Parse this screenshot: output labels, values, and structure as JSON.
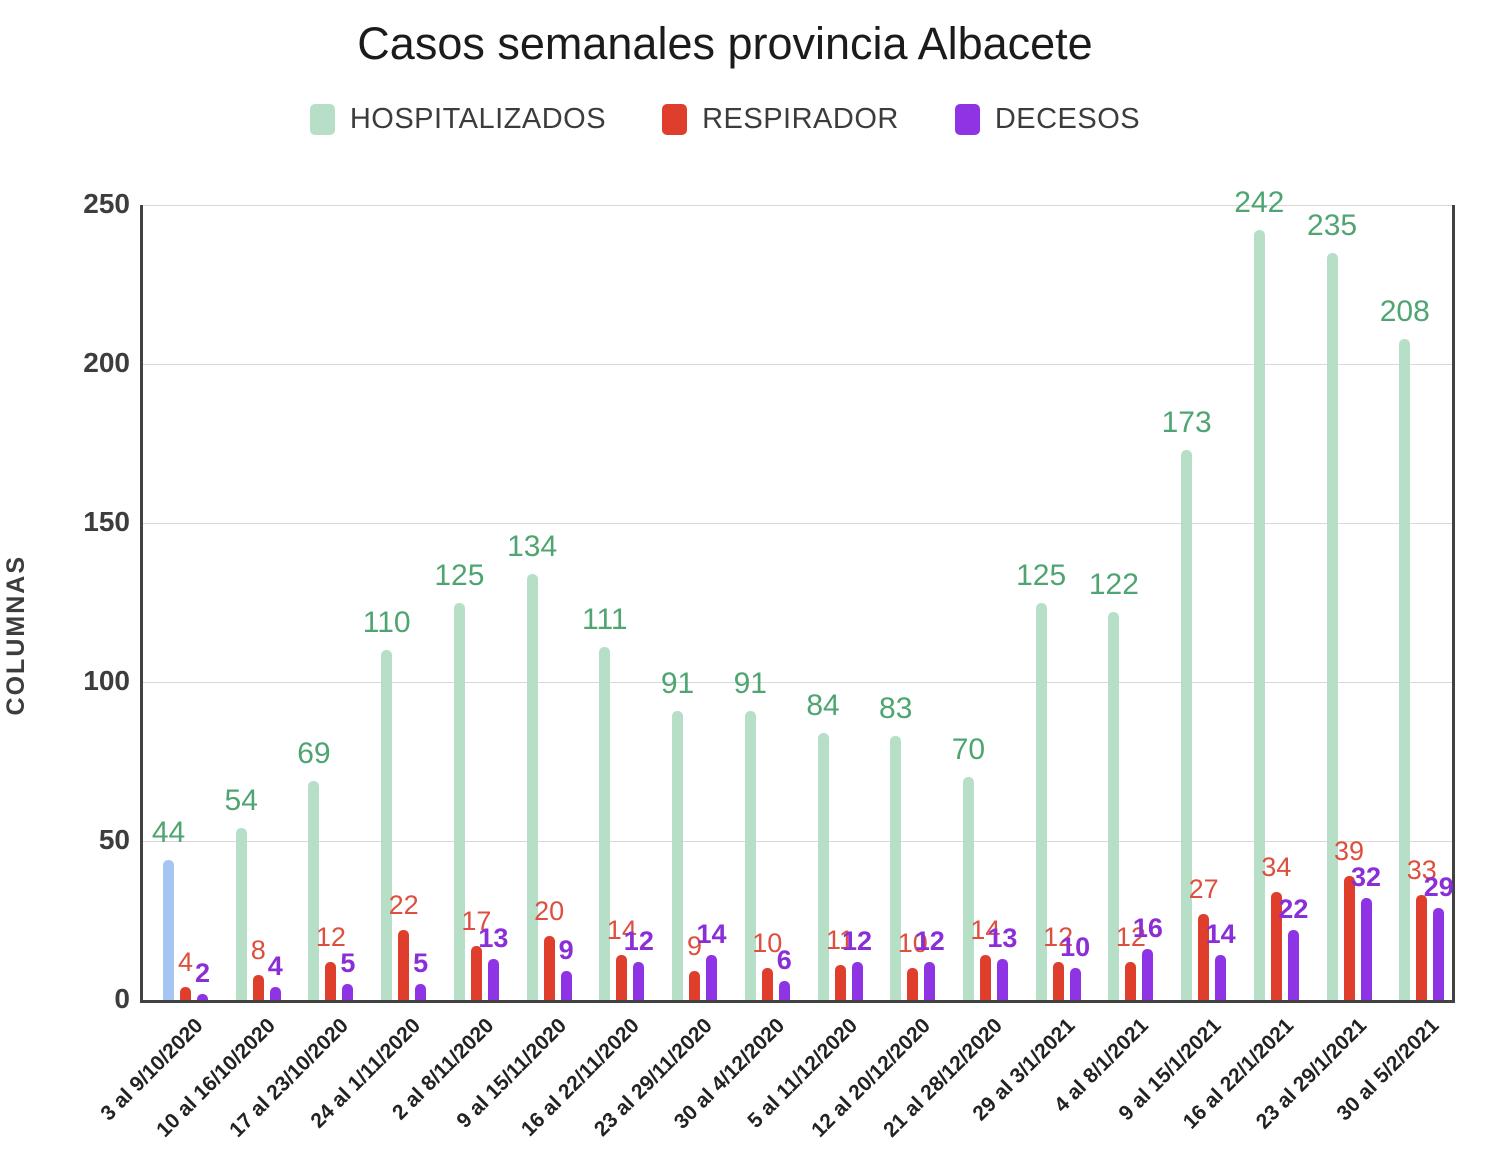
{
  "title": "Casos semanales provincia Albacete",
  "y_axis": {
    "label": "COLUMNAS"
  },
  "chart_data": {
    "type": "bar",
    "title": "Casos semanales provincia Albacete",
    "ylabel": "COLUMNAS",
    "xlabel": "",
    "ylim": [
      0,
      250
    ],
    "yticks": [
      0,
      50,
      100,
      150,
      200,
      250
    ],
    "grid": true,
    "legend_position": "top",
    "categories": [
      "3 al 9/10/2020",
      "10 al 16/10/2020",
      "17 al 23/10/2020",
      "24 al 1/11/2020",
      "2 al 8/11/2020",
      "9 al 15/11/2020",
      "16 al 22/11/2020",
      "23 al 29/11/2020",
      "30 al 4/12/2020",
      "5 al 11/12/2020",
      "12 al 20/12/2020",
      "21 al 28/12/2020",
      "29 al 3/1/2021",
      "4 al 8/1/2021",
      "9 al 15/1/2021",
      "16 al 22/1/2021",
      "23 al 29/1/2021",
      "30 al 5/2/2021"
    ],
    "series": [
      {
        "name": "HOSPITALIZADOS",
        "color": "#b7dfc8",
        "label_color": "#4fa571",
        "values": [
          44,
          54,
          69,
          110,
          125,
          134,
          111,
          91,
          91,
          84,
          83,
          70,
          125,
          122,
          173,
          242,
          235,
          208
        ]
      },
      {
        "name": "RESPIRADOR",
        "color": "#e03e2d",
        "label_color": "#dd4f3e",
        "values": [
          4,
          8,
          12,
          22,
          17,
          20,
          14,
          9,
          10,
          11,
          10,
          14,
          12,
          12,
          27,
          34,
          39,
          33
        ]
      },
      {
        "name": "DECESOS",
        "color": "#8e34e4",
        "label_color": "#8a2fd8",
        "values": [
          2,
          4,
          5,
          5,
          13,
          9,
          12,
          14,
          6,
          12,
          12,
          13,
          10,
          16,
          14,
          22,
          32,
          29
        ]
      }
    ],
    "first_bar_color": "#a7c5f2"
  }
}
